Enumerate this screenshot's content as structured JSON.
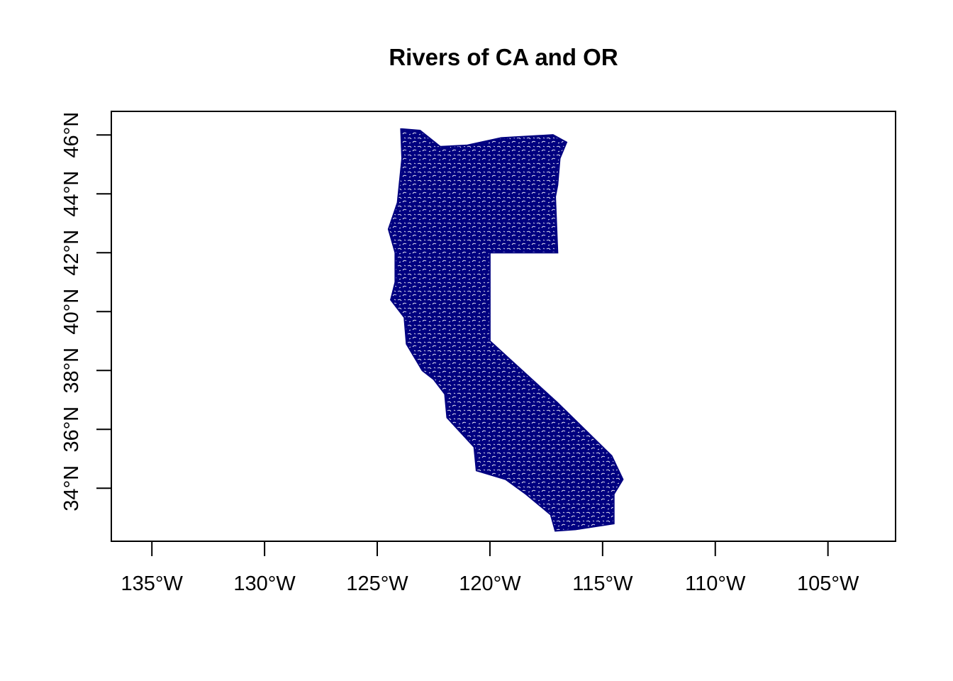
{
  "title": "Rivers of CA and OR",
  "colors": {
    "rivers": "#000080",
    "background": "#ffffff",
    "axes": "#000000"
  },
  "axes": {
    "x_ticks": [
      {
        "value": -135,
        "label": "135°W"
      },
      {
        "value": -130,
        "label": "130°W"
      },
      {
        "value": -125,
        "label": "125°W"
      },
      {
        "value": -120,
        "label": "120°W"
      },
      {
        "value": -115,
        "label": "115°W"
      },
      {
        "value": -110,
        "label": "110°W"
      },
      {
        "value": -105,
        "label": "105°W"
      }
    ],
    "y_ticks": [
      {
        "value": 34,
        "label": "34°N"
      },
      {
        "value": 36,
        "label": "36°N"
      },
      {
        "value": 38,
        "label": "38°N"
      },
      {
        "value": 40,
        "label": "40°N"
      },
      {
        "value": 42,
        "label": "42°N"
      },
      {
        "value": 44,
        "label": "44°N"
      },
      {
        "value": 46,
        "label": "46°N"
      }
    ],
    "xlim": [
      -136.8,
      -102.0
    ],
    "ylim": [
      32.2,
      46.8
    ]
  },
  "map": {
    "features": "river network of California and Oregon",
    "outline_lonlat": [
      [
        -123.9,
        46.2
      ],
      [
        -123.1,
        46.15
      ],
      [
        -122.2,
        45.6
      ],
      [
        -121.0,
        45.65
      ],
      [
        -119.5,
        45.9
      ],
      [
        -117.2,
        46.0
      ],
      [
        -116.6,
        45.75
      ],
      [
        -116.9,
        45.2
      ],
      [
        -117.0,
        44.3
      ],
      [
        -117.1,
        43.9
      ],
      [
        -117.0,
        42.0
      ],
      [
        -120.0,
        42.0
      ],
      [
        -120.0,
        39.0
      ],
      [
        -117.0,
        36.9
      ],
      [
        -114.6,
        35.1
      ],
      [
        -114.1,
        34.3
      ],
      [
        -114.5,
        33.8
      ],
      [
        -114.5,
        32.8
      ],
      [
        -116.2,
        32.6
      ],
      [
        -117.1,
        32.55
      ],
      [
        -117.3,
        33.1
      ],
      [
        -118.4,
        33.8
      ],
      [
        -119.3,
        34.3
      ],
      [
        -120.6,
        34.6
      ],
      [
        -120.7,
        35.4
      ],
      [
        -121.9,
        36.4
      ],
      [
        -122.0,
        37.2
      ],
      [
        -122.5,
        37.7
      ],
      [
        -123.0,
        38.0
      ],
      [
        -123.7,
        38.9
      ],
      [
        -123.8,
        39.8
      ],
      [
        -124.4,
        40.4
      ],
      [
        -124.2,
        41.0
      ],
      [
        -124.2,
        42.0
      ],
      [
        -124.5,
        42.8
      ],
      [
        -124.1,
        43.7
      ],
      [
        -123.9,
        45.2
      ],
      [
        -123.95,
        46.2
      ]
    ]
  }
}
